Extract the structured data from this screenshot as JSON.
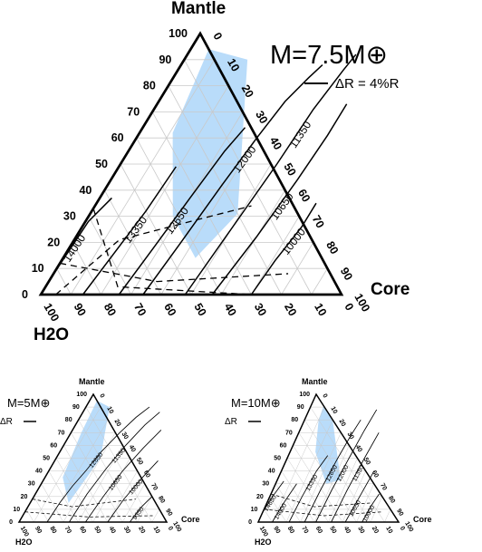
{
  "chart_data": [
    {
      "type": "ternary",
      "title": "M=7.5M⊕",
      "vertex_labels": {
        "top": "Mantle",
        "right": "Core",
        "left": "H2O"
      },
      "scale_bar_label": "ΔR = 4%R",
      "tick_labels": [
        "0",
        "10",
        "20",
        "30",
        "40",
        "50",
        "60",
        "70",
        "80",
        "90",
        "100"
      ],
      "contours": [
        {
          "label": "14000",
          "points": [
            [
              0,
              0.06
            ],
            [
              0.01,
              0.28
            ],
            [
              0.04,
              0.37
            ]
          ]
        },
        {
          "label": "13350",
          "points": [
            [
              0.14,
              0.0
            ],
            [
              0.16,
              0.16
            ],
            [
              0.18,
              0.32
            ],
            [
              0.19,
              0.49
            ]
          ]
        },
        {
          "label": "12650",
          "points": [
            [
              0.26,
              0.0
            ],
            [
              0.28,
              0.18
            ],
            [
              0.3,
              0.37
            ],
            [
              0.32,
              0.55
            ],
            [
              0.34,
              0.64
            ]
          ]
        },
        {
          "label": "12000",
          "points": [
            [
              0.34,
              0.0
            ],
            [
              0.36,
              0.2
            ],
            [
              0.38,
              0.42
            ],
            [
              0.4,
              0.6
            ],
            [
              0.42,
              0.74
            ],
            [
              0.45,
              0.83
            ],
            [
              0.47,
              0.88
            ]
          ]
        },
        {
          "label": "11350",
          "points": [
            [
              0.48,
              0.0
            ],
            [
              0.5,
              0.25
            ],
            [
              0.52,
              0.5
            ],
            [
              0.53,
              0.71
            ],
            [
              0.55,
              0.86
            ],
            [
              0.56,
              0.92
            ]
          ]
        },
        {
          "label": "10650",
          "points": [
            [
              0.57,
              0.0
            ],
            [
              0.6,
              0.22
            ],
            [
              0.62,
              0.44
            ],
            [
              0.63,
              0.61
            ],
            [
              0.63,
              0.73
            ]
          ]
        },
        {
          "label": "10000",
          "points": [
            [
              0.7,
              0.0
            ],
            [
              0.71,
              0.13
            ],
            [
              0.73,
              0.26
            ],
            [
              0.73,
              0.35
            ]
          ]
        }
      ],
      "dashed_lines": [
        [
          [
            0.0,
            0.33
          ],
          [
            0.24,
            0.03
          ],
          [
            0.7,
            0.0
          ]
        ],
        [
          [
            0.0,
            0.12
          ],
          [
            0.36,
            0.05
          ],
          [
            0.78,
            0.08
          ]
        ],
        [
          [
            0.05,
            0.0
          ],
          [
            0.15,
            0.21
          ],
          [
            0.52,
            0.34
          ]
        ]
      ],
      "shaded_band": [
        [
          0.06,
          0.94
        ],
        [
          0.21,
          0.9
        ],
        [
          0.49,
          0.31
        ],
        [
          0.44,
          0.14
        ],
        [
          0.28,
          0.3
        ],
        [
          0.11,
          0.62
        ]
      ],
      "band_color": "#b9dcfa"
    },
    {
      "type": "ternary",
      "title": "M=5M⊕",
      "vertex_labels": {
        "top": "Mantle",
        "right": "Core",
        "left": "H2O"
      },
      "scale_bar_label": "ΔR",
      "tick_labels": [
        "0",
        "10",
        "20",
        "30",
        "40",
        "50",
        "60",
        "70",
        "80",
        "90",
        "100"
      ],
      "contours": [
        {
          "label": "12650",
          "points": [
            [
              0.19,
              0.0
            ],
            [
              0.2,
              0.15
            ],
            [
              0.22,
              0.28
            ],
            [
              0.25,
              0.4
            ],
            [
              0.28,
              0.55
            ],
            [
              0.33,
              0.7
            ],
            [
              0.38,
              0.82
            ],
            [
              0.43,
              0.9
            ]
          ]
        },
        {
          "label": "11350",
          "points": [
            [
              0.34,
              0.0
            ],
            [
              0.35,
              0.22
            ],
            [
              0.38,
              0.42
            ],
            [
              0.42,
              0.6
            ],
            [
              0.47,
              0.76
            ],
            [
              0.52,
              0.86
            ]
          ]
        },
        {
          "label": "10650",
          "points": [
            [
              0.45,
              0.0
            ],
            [
              0.47,
              0.2
            ],
            [
              0.5,
              0.4
            ],
            [
              0.55,
              0.58
            ],
            [
              0.6,
              0.72
            ]
          ]
        },
        {
          "label": "10000",
          "points": [
            [
              0.6,
              0.0
            ],
            [
              0.62,
              0.18
            ],
            [
              0.66,
              0.35
            ],
            [
              0.7,
              0.48
            ]
          ]
        },
        {
          "label": "9350",
          "points": [
            [
              0.75,
              0.0
            ],
            [
              0.77,
              0.12
            ],
            [
              0.8,
              0.2
            ]
          ]
        }
      ],
      "dashed_lines": [
        [
          [
            0.0,
            0.18
          ],
          [
            0.3,
            0.12
          ],
          [
            0.7,
            0.18
          ]
        ],
        [
          [
            0.0,
            0.08
          ],
          [
            0.45,
            0.04
          ],
          [
            0.88,
            0.05
          ]
        ]
      ],
      "shaded_band": [
        [
          0.05,
          0.95
        ],
        [
          0.16,
          0.9
        ],
        [
          0.3,
          0.5
        ],
        [
          0.26,
          0.15
        ],
        [
          0.12,
          0.35
        ],
        [
          0.07,
          0.7
        ]
      ],
      "band_color": "#b9dcfa"
    },
    {
      "type": "ternary",
      "title": "M=10M⊕",
      "vertex_labels": {
        "top": "Mantle",
        "right": "Core",
        "left": "H2O"
      },
      "scale_bar_label": "ΔR",
      "tick_labels": [
        "0",
        "10",
        "20",
        "30",
        "40",
        "50",
        "60",
        "70",
        "80",
        "90",
        "100"
      ],
      "contours": [
        {
          "label": "14650",
          "points": [
            [
              0.0,
              0.08
            ],
            [
              0.02,
              0.2
            ],
            [
              0.05,
              0.32
            ]
          ]
        },
        {
          "label": "14000",
          "points": [
            [
              0.1,
              0.0
            ],
            [
              0.12,
              0.15
            ],
            [
              0.15,
              0.3
            ]
          ]
        },
        {
          "label": "13350",
          "points": [
            [
              0.22,
              0.0
            ],
            [
              0.23,
              0.2
            ],
            [
              0.25,
              0.4
            ],
            [
              0.28,
              0.52
            ]
          ]
        },
        {
          "label": "12650",
          "points": [
            [
              0.33,
              0.0
            ],
            [
              0.34,
              0.25
            ],
            [
              0.36,
              0.5
            ],
            [
              0.38,
              0.68
            ],
            [
              0.4,
              0.8
            ]
          ]
        },
        {
          "label": "12000",
          "points": [
            [
              0.41,
              0.0
            ],
            [
              0.42,
              0.25
            ],
            [
              0.44,
              0.5
            ],
            [
              0.46,
              0.72
            ],
            [
              0.48,
              0.88
            ]
          ]
        },
        {
          "label": "11350",
          "points": [
            [
              0.52,
              0.0
            ],
            [
              0.53,
              0.25
            ],
            [
              0.55,
              0.5
            ],
            [
              0.57,
              0.7
            ]
          ]
        },
        {
          "label": "10650",
          "points": [
            [
              0.62,
              0.0
            ],
            [
              0.64,
              0.2
            ],
            [
              0.66,
              0.4
            ]
          ]
        },
        {
          "label": "10000",
          "points": [
            [
              0.74,
              0.0
            ],
            [
              0.75,
              0.12
            ],
            [
              0.77,
              0.22
            ]
          ]
        }
      ],
      "dashed_lines": [
        [
          [
            0.0,
            0.22
          ],
          [
            0.35,
            0.12
          ],
          [
            0.75,
            0.15
          ]
        ],
        [
          [
            0.0,
            0.1
          ],
          [
            0.45,
            0.05
          ],
          [
            0.85,
            0.08
          ]
        ]
      ],
      "shaded_band": [
        [
          0.09,
          0.91
        ],
        [
          0.2,
          0.8
        ],
        [
          0.45,
          0.33
        ],
        [
          0.36,
          0.3
        ],
        [
          0.18,
          0.55
        ],
        [
          0.1,
          0.8
        ]
      ],
      "band_color": "#b9dcfa"
    }
  ]
}
